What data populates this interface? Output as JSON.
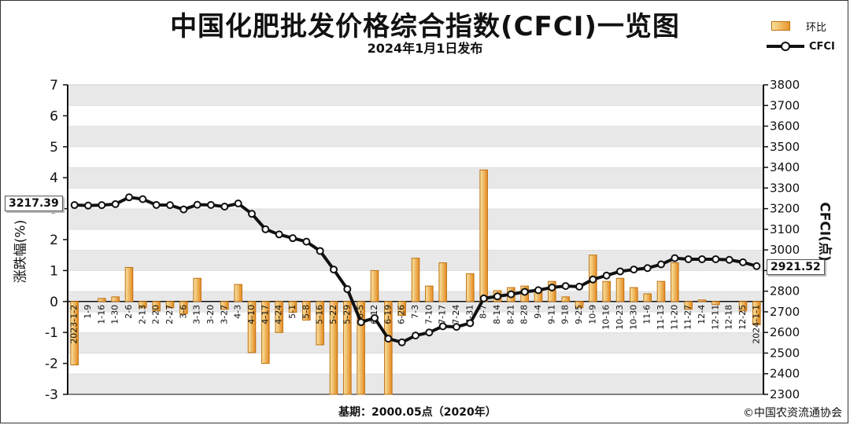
{
  "title": "中国化肥批发价格综合指数(CFCI)一览图",
  "subtitle": "2024年1月1日发布",
  "footer_base": "基期：2000.05点（2020年）",
  "footer_copyright": "©中国农资流通协会",
  "legend": {
    "bar_label": "环比",
    "line_label": "CFCI"
  },
  "callouts": {
    "start": "3217.39",
    "end": "2921.52"
  },
  "colors": {
    "bar_fill": "#f0b040",
    "bar_stroke": "#c07010",
    "line": "#111111",
    "grid_band": "#e8e8e8"
  },
  "chart_data": {
    "type": "bar+line",
    "categories": [
      "2023-1-2",
      "1-9",
      "1-16",
      "1-30",
      "2-6",
      "2-13",
      "2-20",
      "2-27",
      "3-6",
      "3-13",
      "3-20",
      "3-27",
      "4-3",
      "4-10",
      "4-17",
      "4-24",
      "5-1",
      "5-8",
      "5-16",
      "5-22",
      "5-29",
      "6-5",
      "6-12",
      "6-19",
      "6-26",
      "7-3",
      "7-10",
      "7-17",
      "7-24",
      "7-31",
      "8-7",
      "8-14",
      "8-21",
      "8-28",
      "9-4",
      "9-11",
      "9-18",
      "9-25",
      "10-9",
      "10-16",
      "10-23",
      "10-30",
      "11-6",
      "11-13",
      "11-20",
      "11-27",
      "12-4",
      "12-11",
      "12-18",
      "12-25",
      "2024-1-1"
    ],
    "y_left": {
      "label": "涨跌幅(%)",
      "range": [
        -3,
        7
      ],
      "ticks": [
        -3,
        -2,
        -1,
        0,
        1,
        2,
        3,
        4,
        5,
        6,
        7
      ]
    },
    "y_right": {
      "label": "CFCI(点)",
      "range": [
        2300,
        3800
      ],
      "ticks": [
        2300,
        2400,
        2500,
        2600,
        2700,
        2800,
        2900,
        3000,
        3100,
        3200,
        3300,
        3400,
        3500,
        3600,
        3700,
        3800
      ]
    },
    "series": [
      {
        "name": "环比",
        "type": "bar",
        "axis": "left",
        "values": [
          -2.05,
          0,
          0.1,
          0.15,
          1.1,
          -0.2,
          -0.3,
          -0.2,
          -0.4,
          0.75,
          0,
          -0.25,
          0.55,
          -1.65,
          -2.0,
          -1.0,
          -0.35,
          -0.6,
          -1.4,
          -3.0,
          -3.0,
          -3.0,
          1.0,
          -3.0,
          -0.45,
          1.4,
          0.5,
          1.25,
          0,
          0.9,
          4.25,
          0.35,
          0.45,
          0.5,
          0.4,
          0.65,
          0.15,
          -0.2,
          1.5,
          0.65,
          0.75,
          0.45,
          0.25,
          0.65,
          1.25,
          -0.25,
          0.05,
          -0.1,
          0,
          -0.3,
          -0.75
        ]
      },
      {
        "name": "CFCI",
        "type": "line",
        "axis": "right",
        "values": [
          3217.39,
          3215,
          3217,
          3222,
          3255,
          3246,
          3218,
          3217,
          3196,
          3219,
          3218,
          3210,
          3225,
          3175,
          3100,
          3075,
          3057,
          3040,
          2995,
          2905,
          2810,
          2650,
          2670,
          2570,
          2552,
          2585,
          2600,
          2630,
          2627,
          2645,
          2765,
          2775,
          2785,
          2797,
          2805,
          2818,
          2825,
          2822,
          2857,
          2876,
          2896,
          2905,
          2912,
          2930,
          2960,
          2955,
          2955,
          2955,
          2952,
          2940,
          2921.52
        ]
      }
    ],
    "grid": true,
    "legend_position": "top-right"
  }
}
